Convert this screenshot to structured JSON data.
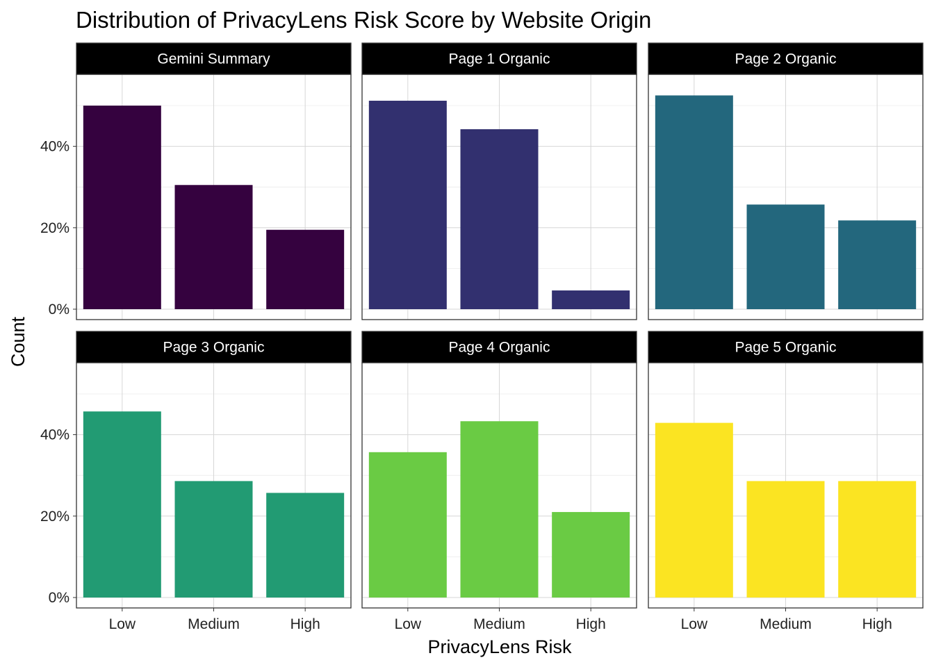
{
  "chart_data": {
    "type": "bar",
    "title": "Distribution of PrivacyLens Risk Score by Website Origin",
    "xlabel": "PrivacyLens Risk",
    "ylabel": "Count",
    "categories": [
      "Low",
      "Medium",
      "High"
    ],
    "ylim": [
      0,
      60
    ],
    "yticks": [
      0,
      20,
      40
    ],
    "ytick_labels": [
      "0%",
      "20%",
      "40%"
    ],
    "grid": true,
    "legend": "none",
    "facets": [
      {
        "name": "Gemini Summary",
        "color": "#35023F",
        "values": [
          50,
          30.5,
          19.5
        ]
      },
      {
        "name": "Page 1 Organic",
        "color": "#32306F",
        "values": [
          51.2,
          44.2,
          4.6
        ]
      },
      {
        "name": "Page 2 Organic",
        "color": "#23677D",
        "values": [
          52.5,
          25.7,
          21.8
        ]
      },
      {
        "name": "Page 3 Organic",
        "color": "#229B73",
        "values": [
          45.7,
          28.6,
          25.7
        ]
      },
      {
        "name": "Page 4 Organic",
        "color": "#6ACB44",
        "values": [
          35.7,
          43.3,
          21
        ]
      },
      {
        "name": "Page 5 Organic",
        "color": "#FBE422",
        "values": [
          42.9,
          28.6,
          28.6
        ]
      }
    ]
  }
}
